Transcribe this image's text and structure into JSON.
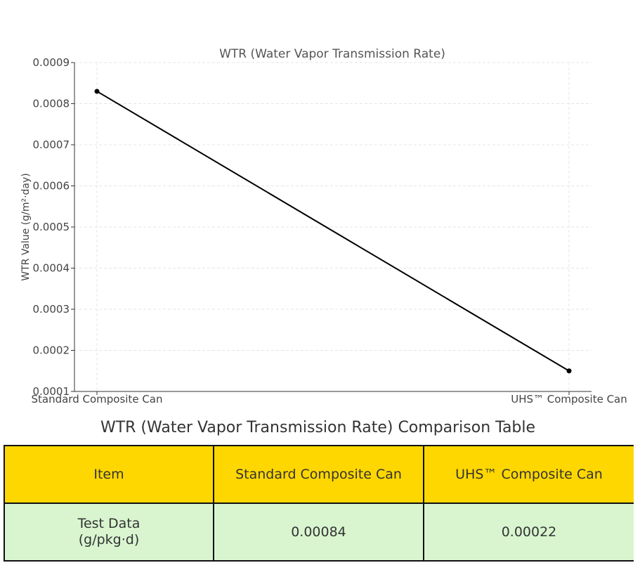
{
  "chart_data": {
    "type": "line",
    "title": "WTR (Water Vapor Transmission Rate)",
    "xlabel": "",
    "ylabel": "WTR Value (g/m²·day)",
    "categories": [
      "Standard Composite Can",
      "UHS™ Composite Can"
    ],
    "series": [
      {
        "values": [
          0.00083,
          0.00015
        ],
        "color": "#000000"
      }
    ],
    "ylim": [
      0.0001,
      0.0009
    ],
    "yticks": [
      "0.0001",
      "0.0002",
      "0.0003",
      "0.0004",
      "0.0005",
      "0.0006",
      "0.0007",
      "0.0008",
      "0.0009"
    ],
    "grid": true,
    "marker": "dot"
  },
  "table": {
    "title": "WTR (Water Vapor Transmission Rate) Comparison Table",
    "header_color": "#ffd700",
    "row_color": "#d8f5d0",
    "headers": [
      "Item",
      "Standard Composite Can",
      "UHS™ Composite Can"
    ],
    "rows": [
      [
        "Test Data\n(g/pkg·d)",
        "0.00084",
        "0.00022"
      ]
    ]
  }
}
